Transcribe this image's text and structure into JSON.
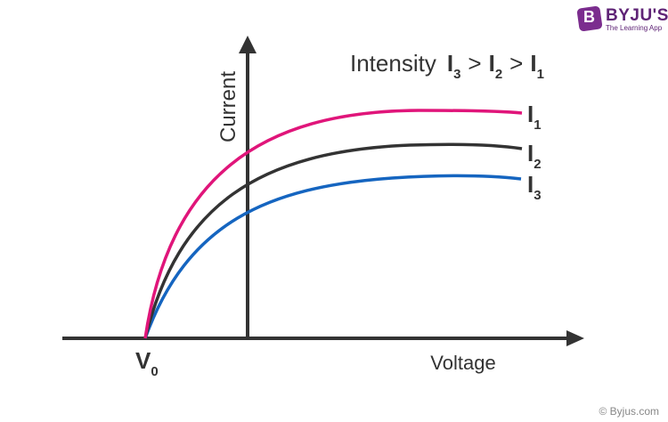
{
  "brand": {
    "name": "BYJU'S",
    "tagline": "The Learning App",
    "logo_letter": "B",
    "color": "#7b2d8e"
  },
  "copyright": "© Byjus.com",
  "diagram": {
    "y_axis_label": "Current",
    "x_axis_label": "Voltage",
    "origin_label": {
      "main": "V",
      "sub": "0"
    },
    "legend": {
      "prefix": "Intensity",
      "terms": [
        {
          "main": "I",
          "sub": "3"
        },
        {
          "main": "I",
          "sub": "2"
        },
        {
          "main": "I",
          "sub": "1"
        }
      ],
      "operator": ">"
    },
    "curves": [
      {
        "main": "I",
        "sub": "1",
        "color": "#e0157a"
      },
      {
        "main": "I",
        "sub": "2",
        "color": "#333333"
      },
      {
        "main": "I",
        "sub": "3",
        "color": "#1565c0"
      }
    ],
    "axis_color": "#333333"
  }
}
